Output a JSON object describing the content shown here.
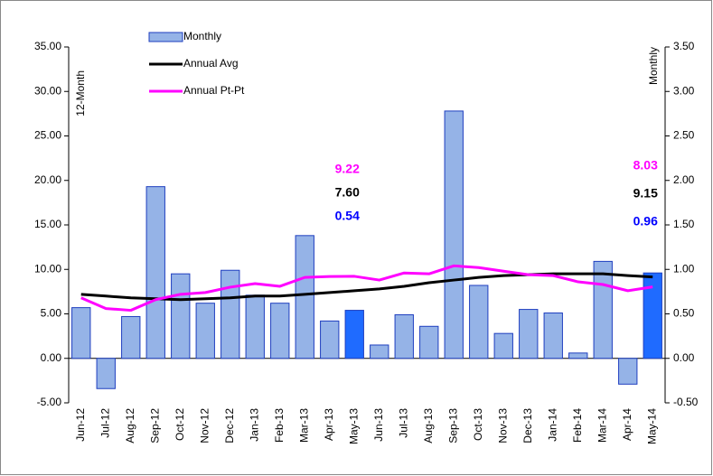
{
  "chart_data": {
    "type": "bar",
    "y_label": "12-Month",
    "y2_label": "Monthly",
    "categories": [
      "Jun-12",
      "Jul-12",
      "Aug-12",
      "Sep-12",
      "Oct-12",
      "Nov-12",
      "Dec-12",
      "Jan-13",
      "Feb-13",
      "Mar-13",
      "Apr-13",
      "May-13",
      "Jun-13",
      "Jul-13",
      "Aug-13",
      "Sep-13",
      "Oct-13",
      "Nov-13",
      "Dec-13",
      "Jan-14",
      "Feb-14",
      "Mar-14",
      "Apr-14",
      "May-14"
    ],
    "series": [
      {
        "name": "Monthly",
        "type": "bar",
        "axis": "y2",
        "color": "#95b3e7",
        "colors": [
          "#95b3e7",
          "#95b3e7",
          "#95b3e7",
          "#95b3e7",
          "#95b3e7",
          "#95b3e7",
          "#95b3e7",
          "#95b3e7",
          "#95b3e7",
          "#95b3e7",
          "#95b3e7",
          "#1f6bff",
          "#95b3e7",
          "#95b3e7",
          "#95b3e7",
          "#95b3e7",
          "#95b3e7",
          "#95b3e7",
          "#95b3e7",
          "#95b3e7",
          "#95b3e7",
          "#95b3e7",
          "#95b3e7",
          "#1f6bff"
        ],
        "values": [
          0.57,
          -0.34,
          0.47,
          1.93,
          0.95,
          0.62,
          0.99,
          0.71,
          0.62,
          1.38,
          0.42,
          0.54,
          0.15,
          0.49,
          0.36,
          2.78,
          0.82,
          0.28,
          0.55,
          0.51,
          0.06,
          1.09,
          -0.29,
          0.96
        ],
        "value_labels": [
          null,
          null,
          null,
          null,
          null,
          null,
          null,
          null,
          null,
          null,
          null,
          "0.54",
          null,
          null,
          null,
          null,
          null,
          null,
          null,
          null,
          null,
          null,
          null,
          "0.96"
        ],
        "label_color": "#0000ff"
      },
      {
        "name": "Annual Avg",
        "type": "line",
        "color": "#000000",
        "values": [
          7.2,
          7.0,
          6.8,
          6.7,
          6.6,
          6.7,
          6.8,
          7.0,
          7.0,
          7.2,
          7.4,
          7.6,
          7.8,
          8.1,
          8.5,
          8.8,
          9.1,
          9.3,
          9.4,
          9.5,
          9.5,
          9.5,
          9.3,
          9.15
        ],
        "value_labels": [
          null,
          null,
          null,
          null,
          null,
          null,
          null,
          null,
          null,
          null,
          null,
          "7.60",
          null,
          null,
          null,
          null,
          null,
          null,
          null,
          null,
          null,
          null,
          null,
          "9.15"
        ],
        "label_color": "#000000"
      },
      {
        "name": "Annual Pt-Pt",
        "type": "line",
        "color": "#ff00ff",
        "values": [
          6.8,
          5.6,
          5.4,
          6.6,
          7.2,
          7.4,
          8.0,
          8.4,
          8.1,
          9.1,
          9.2,
          9.22,
          8.8,
          9.6,
          9.5,
          10.4,
          10.2,
          9.8,
          9.4,
          9.3,
          8.6,
          8.3,
          7.6,
          8.03
        ],
        "value_labels": [
          null,
          null,
          null,
          null,
          null,
          null,
          null,
          null,
          null,
          null,
          null,
          "9.22",
          null,
          null,
          null,
          null,
          null,
          null,
          null,
          null,
          null,
          null,
          null,
          "8.03"
        ],
        "label_color": "#ff00ff"
      }
    ],
    "ylim": [
      -5,
      35
    ],
    "yticks": [
      {
        "value": -5,
        "label": "-5.00"
      },
      {
        "value": 0,
        "label": "0.00"
      },
      {
        "value": 5,
        "label": "5.00"
      },
      {
        "value": 10,
        "label": "10.00"
      },
      {
        "value": 15,
        "label": "15.00"
      },
      {
        "value": 20,
        "label": "20.00"
      },
      {
        "value": 25,
        "label": "25.00"
      },
      {
        "value": 30,
        "label": "30.00"
      },
      {
        "value": 35,
        "label": "35.00"
      }
    ],
    "y2lim": [
      -0.5,
      3.5
    ],
    "y2ticks": [
      {
        "value": -0.5,
        "label": "-0.50"
      },
      {
        "value": 0,
        "label": "0.00"
      },
      {
        "value": 0.5,
        "label": "0.50"
      },
      {
        "value": 1,
        "label": "1.00"
      },
      {
        "value": 1.5,
        "label": "1.50"
      },
      {
        "value": 2,
        "label": "2.00"
      },
      {
        "value": 2.5,
        "label": "2.50"
      },
      {
        "value": 3,
        "label": "3.00"
      },
      {
        "value": 3.5,
        "label": "3.50"
      }
    ],
    "grid": false
  }
}
